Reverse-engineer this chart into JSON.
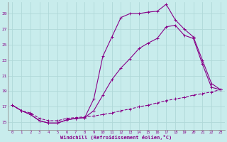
{
  "xlabel": "Windchill (Refroidissement éolien,°C)",
  "background_color": "#c8ecec",
  "grid_color": "#b0d8d8",
  "line_color": "#880088",
  "xlim": [
    -0.5,
    23.5
  ],
  "ylim": [
    14.0,
    30.5
  ],
  "yticks": [
    15,
    17,
    19,
    21,
    23,
    25,
    27,
    29
  ],
  "xticks": [
    0,
    1,
    2,
    3,
    4,
    5,
    6,
    7,
    8,
    9,
    10,
    11,
    12,
    13,
    14,
    15,
    16,
    17,
    18,
    19,
    20,
    21,
    22,
    23
  ],
  "line1_x": [
    0,
    1,
    2,
    3,
    4,
    5,
    6,
    7,
    8,
    9,
    10,
    11,
    12,
    13,
    14,
    15,
    16,
    17,
    18,
    19,
    20,
    21,
    22,
    23
  ],
  "line1_y": [
    17.2,
    16.5,
    16.0,
    15.2,
    14.9,
    14.9,
    15.3,
    15.5,
    15.6,
    18.0,
    23.5,
    26.0,
    28.5,
    29.0,
    29.0,
    29.2,
    29.3,
    30.2,
    28.2,
    27.0,
    26.0,
    23.0,
    20.0,
    19.2
  ],
  "line2_x": [
    0,
    1,
    2,
    3,
    4,
    5,
    6,
    7,
    8,
    9,
    10,
    11,
    12,
    13,
    14,
    15,
    16,
    17,
    18,
    19,
    20,
    21,
    22,
    23
  ],
  "line2_y": [
    17.2,
    16.5,
    16.0,
    15.2,
    14.9,
    14.9,
    15.3,
    15.5,
    15.6,
    16.5,
    18.5,
    20.5,
    22.0,
    23.2,
    24.5,
    25.2,
    25.8,
    27.3,
    27.5,
    26.2,
    25.8,
    22.5,
    19.5,
    19.2
  ],
  "line3_x": [
    0,
    1,
    2,
    3,
    4,
    5,
    6,
    7,
    8,
    9,
    10,
    11,
    12,
    13,
    14,
    15,
    16,
    17,
    18,
    19,
    20,
    21,
    22,
    23
  ],
  "line3_y": [
    17.2,
    16.5,
    16.2,
    15.5,
    15.2,
    15.2,
    15.5,
    15.6,
    15.7,
    15.8,
    16.0,
    16.2,
    16.5,
    16.7,
    17.0,
    17.2,
    17.5,
    17.8,
    18.0,
    18.2,
    18.5,
    18.7,
    18.9,
    19.2
  ]
}
